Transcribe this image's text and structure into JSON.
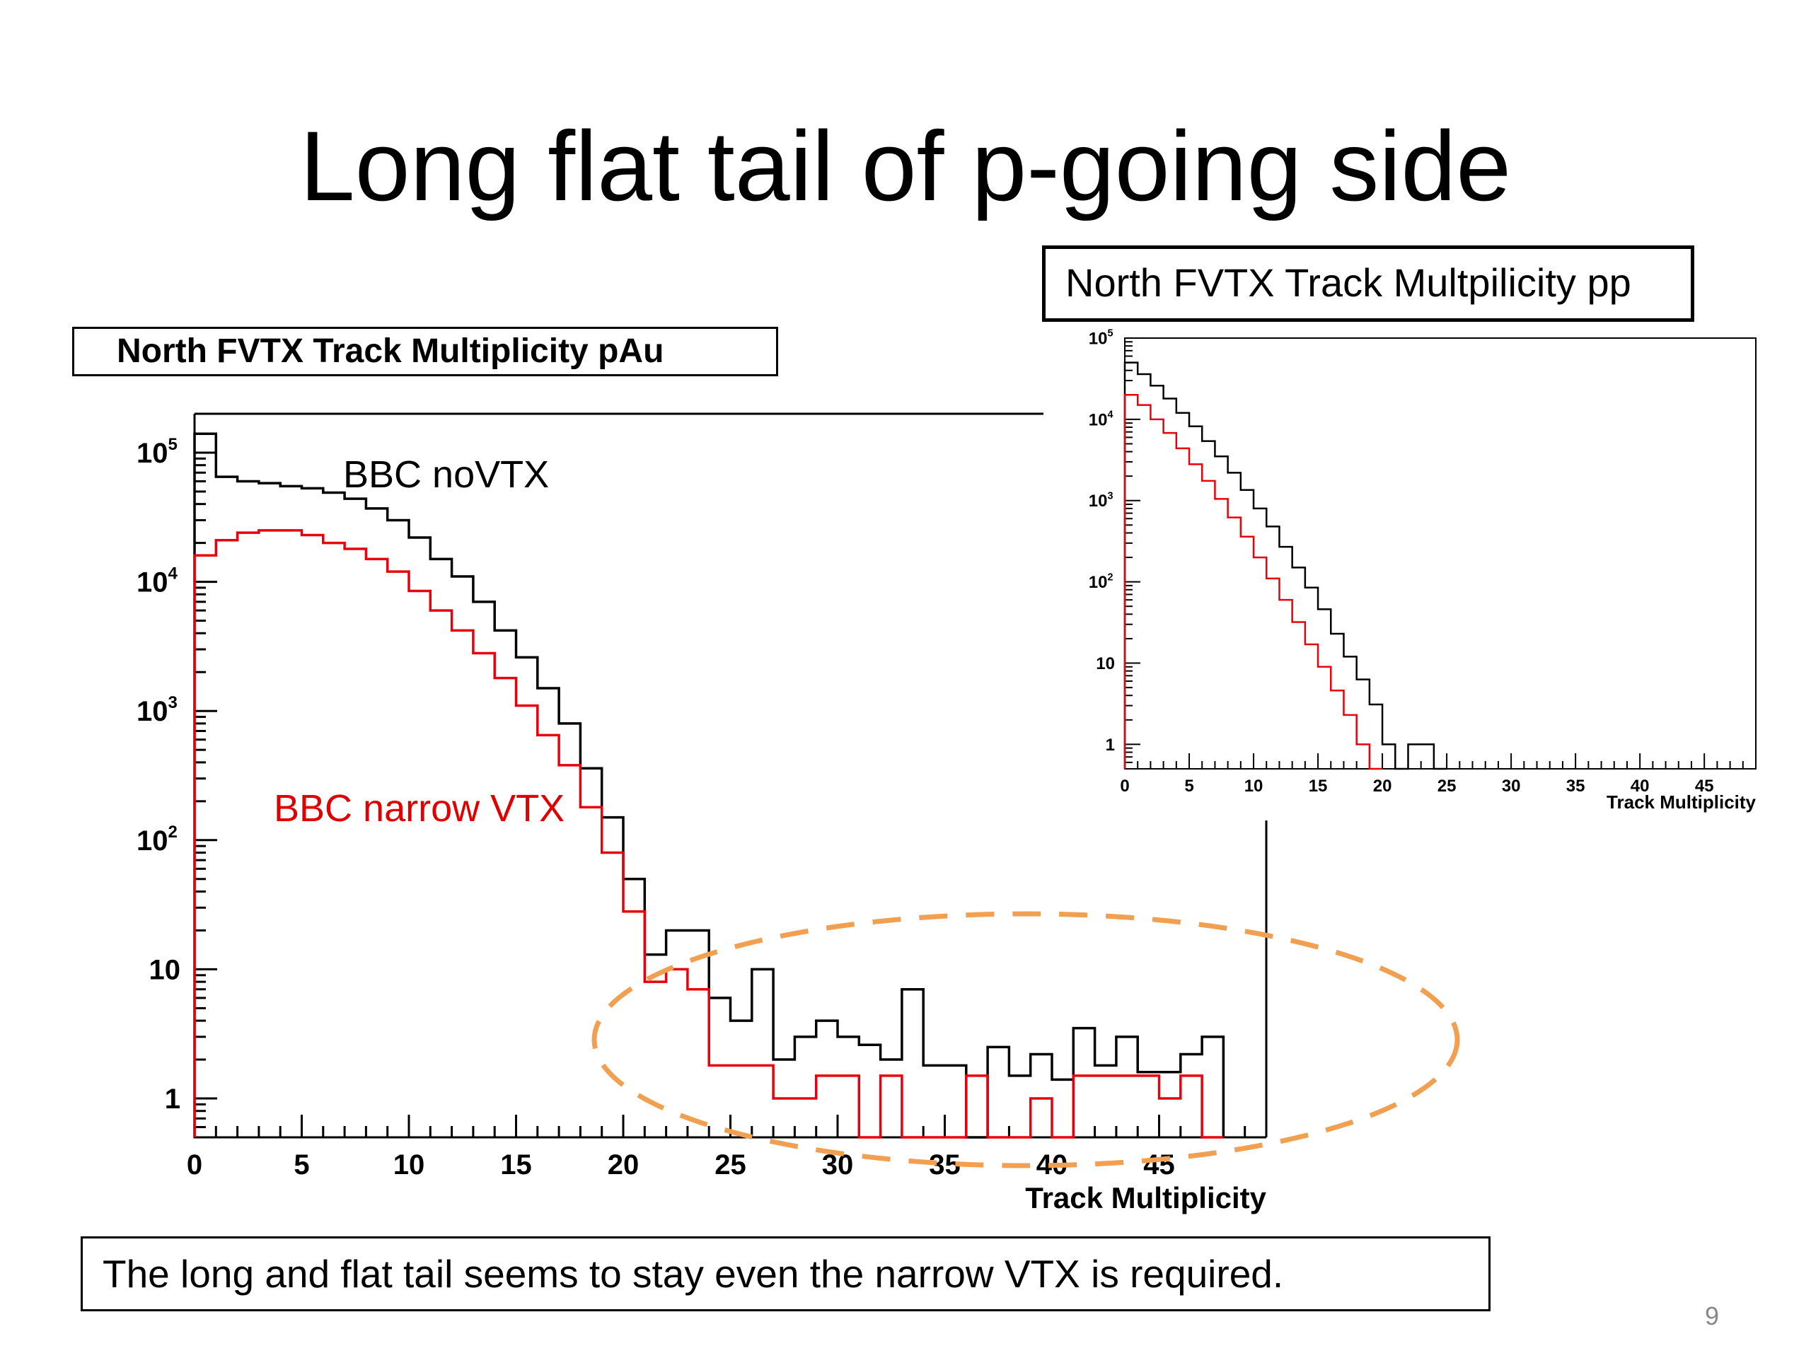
{
  "slide": {
    "title": "Long flat tail of p-going side",
    "caption": "The long and flat tail seems to stay even the narrow VTX is required.",
    "page_number": "9"
  },
  "chart_data": [
    {
      "type": "line",
      "title": "North FVTX Track Multiplicity pAu",
      "xlabel": "Track Multiplicity",
      "ylabel": "",
      "xlim": [
        0,
        50
      ],
      "ylim": [
        0.5,
        200000
      ],
      "yscale": "log",
      "xticks": [
        "0",
        "5",
        "10",
        "15",
        "20",
        "25",
        "30",
        "35",
        "40",
        "45"
      ],
      "yticks": [
        {
          "value": 1,
          "label": "1"
        },
        {
          "value": 10,
          "label": "10"
        },
        {
          "value": 100,
          "label": "10",
          "exp": "2"
        },
        {
          "value": 1000,
          "label": "10",
          "exp": "3"
        },
        {
          "value": 10000,
          "label": "10",
          "exp": "4"
        },
        {
          "value": 100000,
          "label": "10",
          "exp": "5"
        }
      ],
      "series": [
        {
          "name": "BBC noVTX",
          "color": "#000000",
          "values": [
            140000,
            65000,
            60000,
            58000,
            55000,
            53000,
            49000,
            44000,
            37000,
            30000,
            22000,
            15000,
            11000,
            7000,
            4200,
            2600,
            1500,
            800,
            360,
            150,
            50,
            13,
            20,
            20,
            6,
            4,
            10,
            2,
            3,
            4,
            3,
            2.6,
            2,
            7,
            1.8,
            1.8,
            0.4,
            2.5,
            1.5,
            2.2,
            1.4,
            3.5,
            1.8,
            3,
            1.6,
            1.6,
            2.2,
            3
          ]
        },
        {
          "name": "BBC narrow VTX",
          "color": "#e8000b",
          "values": [
            16000,
            21000,
            24000,
            25000,
            25000,
            23000,
            20000,
            18000,
            15000,
            12000,
            8500,
            6000,
            4200,
            2800,
            1800,
            1100,
            650,
            380,
            180,
            80,
            28,
            8,
            10,
            7,
            1.8,
            1.8,
            1.8,
            1.0,
            1.0,
            1.5,
            1.5,
            0.5,
            1.5,
            0.5,
            0.5,
            0.5,
            1.5,
            0.5,
            0.5,
            1.0,
            0.5,
            1.5,
            1.5,
            1.5,
            1.5,
            1.0,
            1.5,
            0.5
          ]
        }
      ],
      "annotation": "dashed-ellipse",
      "annotation_color": "#f0a050"
    },
    {
      "type": "line",
      "title": "North FVTX Track Multpilicity pp",
      "xlabel": "Track Multiplicity",
      "ylabel": "",
      "xlim": [
        0,
        49
      ],
      "ylim": [
        0.5,
        100000
      ],
      "yscale": "log",
      "xticks": [
        "0",
        "5",
        "10",
        "15",
        "20",
        "25",
        "30",
        "35",
        "40",
        "45"
      ],
      "yticks": [
        {
          "value": 1,
          "label": "1"
        },
        {
          "value": 10,
          "label": "10"
        },
        {
          "value": 100,
          "label": "10",
          "exp": "2"
        },
        {
          "value": 1000,
          "label": "10",
          "exp": "3"
        },
        {
          "value": 10000,
          "label": "10",
          "exp": "4"
        },
        {
          "value": 100000,
          "label": "10",
          "exp": "5"
        }
      ],
      "series": [
        {
          "name": "",
          "color": "#000000",
          "values": [
            50000,
            36000,
            26000,
            18000,
            12000,
            8200,
            5400,
            3500,
            2200,
            1350,
            800,
            480,
            270,
            150,
            85,
            46,
            23,
            12,
            6.3,
            3.1,
            1.0,
            0.5,
            1.0,
            1.0,
            0.5
          ]
        },
        {
          "name": "",
          "color": "#e8000b",
          "values": [
            20000,
            15000,
            10000,
            6800,
            4400,
            2800,
            1750,
            1050,
            620,
            360,
            200,
            110,
            60,
            32,
            17,
            9.0,
            4.6,
            2.3,
            1.0,
            0.5
          ]
        }
      ]
    }
  ]
}
